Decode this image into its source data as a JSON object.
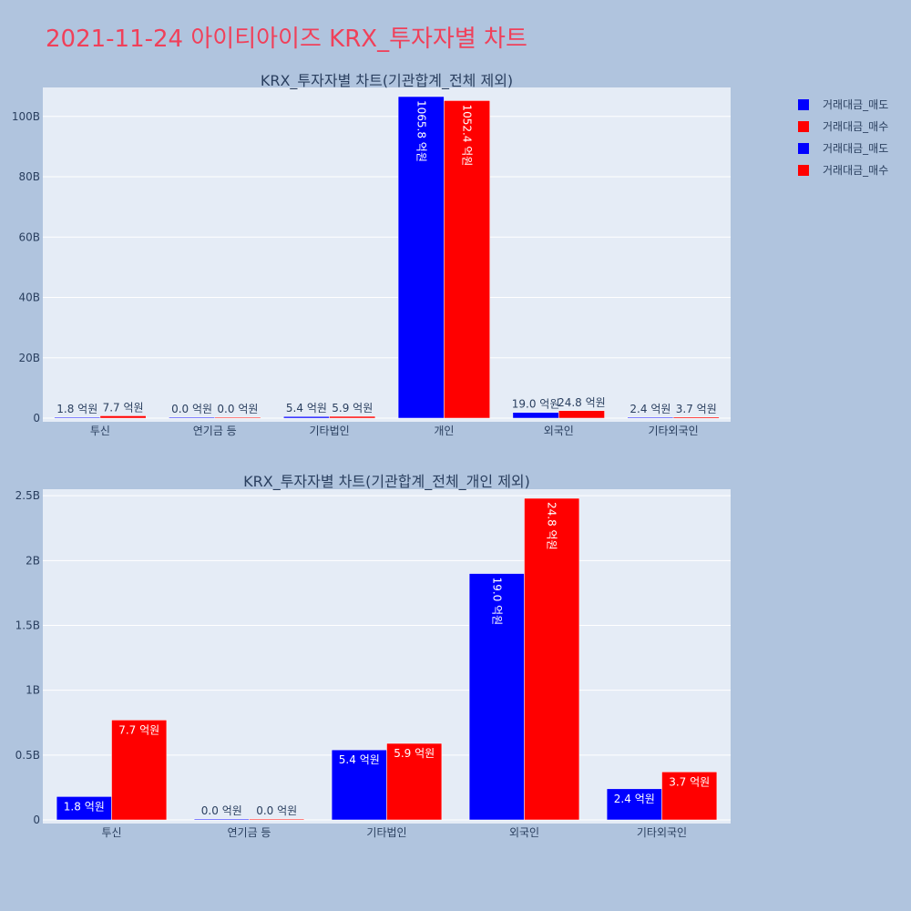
{
  "page": {
    "title": "2021-11-24 아이티아이즈 KRX_투자자별 차트"
  },
  "legend": [
    {
      "label": "거래대금_매도",
      "color": "#0000ff"
    },
    {
      "label": "거래대금_매수",
      "color": "#ff0000"
    },
    {
      "label": "거래대금_매도",
      "color": "#0000ff"
    },
    {
      "label": "거래대금_매수",
      "color": "#ff0000"
    }
  ],
  "chart_data": [
    {
      "type": "bar",
      "title": "KRX_투자자별 차트(기관합계_전체 제외)",
      "categories": [
        "투신",
        "연기금 등",
        "기타법인",
        "개인",
        "외국인",
        "기타외국인"
      ],
      "ylim": [
        0,
        106580000000
      ],
      "yticks": [
        0,
        20000000000,
        40000000000,
        60000000000,
        80000000000,
        100000000000
      ],
      "ytick_labels": [
        "0",
        "20B",
        "40B",
        "60B",
        "80B",
        "100B"
      ],
      "series": [
        {
          "name": "거래대금_매도",
          "color": "#0000ff",
          "values": [
            180000000,
            0,
            540000000,
            106580000000,
            1900000000,
            240000000
          ],
          "labels": [
            "1.8 억원",
            "0.0 억원",
            "5.4 억원",
            "1065.8 억원",
            "19.0 억원",
            "2.4 억원"
          ]
        },
        {
          "name": "거래대금_매수",
          "color": "#ff0000",
          "values": [
            770000000,
            0,
            590000000,
            105240000000,
            2480000000,
            370000000
          ],
          "labels": [
            "7.7 억원",
            "0.0 억원",
            "5.9 억원",
            "1052.4 억원",
            "24.8 억원",
            "3.7 억원"
          ]
        }
      ]
    },
    {
      "type": "bar",
      "title": "KRX_투자자별 차트(기관합계_전체_개인 제외)",
      "categories": [
        "투신",
        "연기금 등",
        "기타법인",
        "외국인",
        "기타외국인"
      ],
      "ylim": [
        0,
        2480000000
      ],
      "yticks": [
        0,
        500000000,
        1000000000,
        1500000000,
        2000000000,
        2500000000
      ],
      "ytick_labels": [
        "0",
        "0.5B",
        "1B",
        "1.5B",
        "2B",
        "2.5B"
      ],
      "series": [
        {
          "name": "거래대금_매도",
          "color": "#0000ff",
          "values": [
            180000000,
            0,
            540000000,
            1900000000,
            240000000
          ],
          "labels": [
            "1.8 억원",
            "0.0 억원",
            "5.4 억원",
            "19.0 억원",
            "2.4 억원"
          ]
        },
        {
          "name": "거래대금_매수",
          "color": "#ff0000",
          "values": [
            770000000,
            0,
            590000000,
            2480000000,
            370000000
          ],
          "labels": [
            "7.7 억원",
            "0.0 억원",
            "5.9 억원",
            "24.8 억원",
            "3.7 억원"
          ]
        }
      ]
    }
  ]
}
